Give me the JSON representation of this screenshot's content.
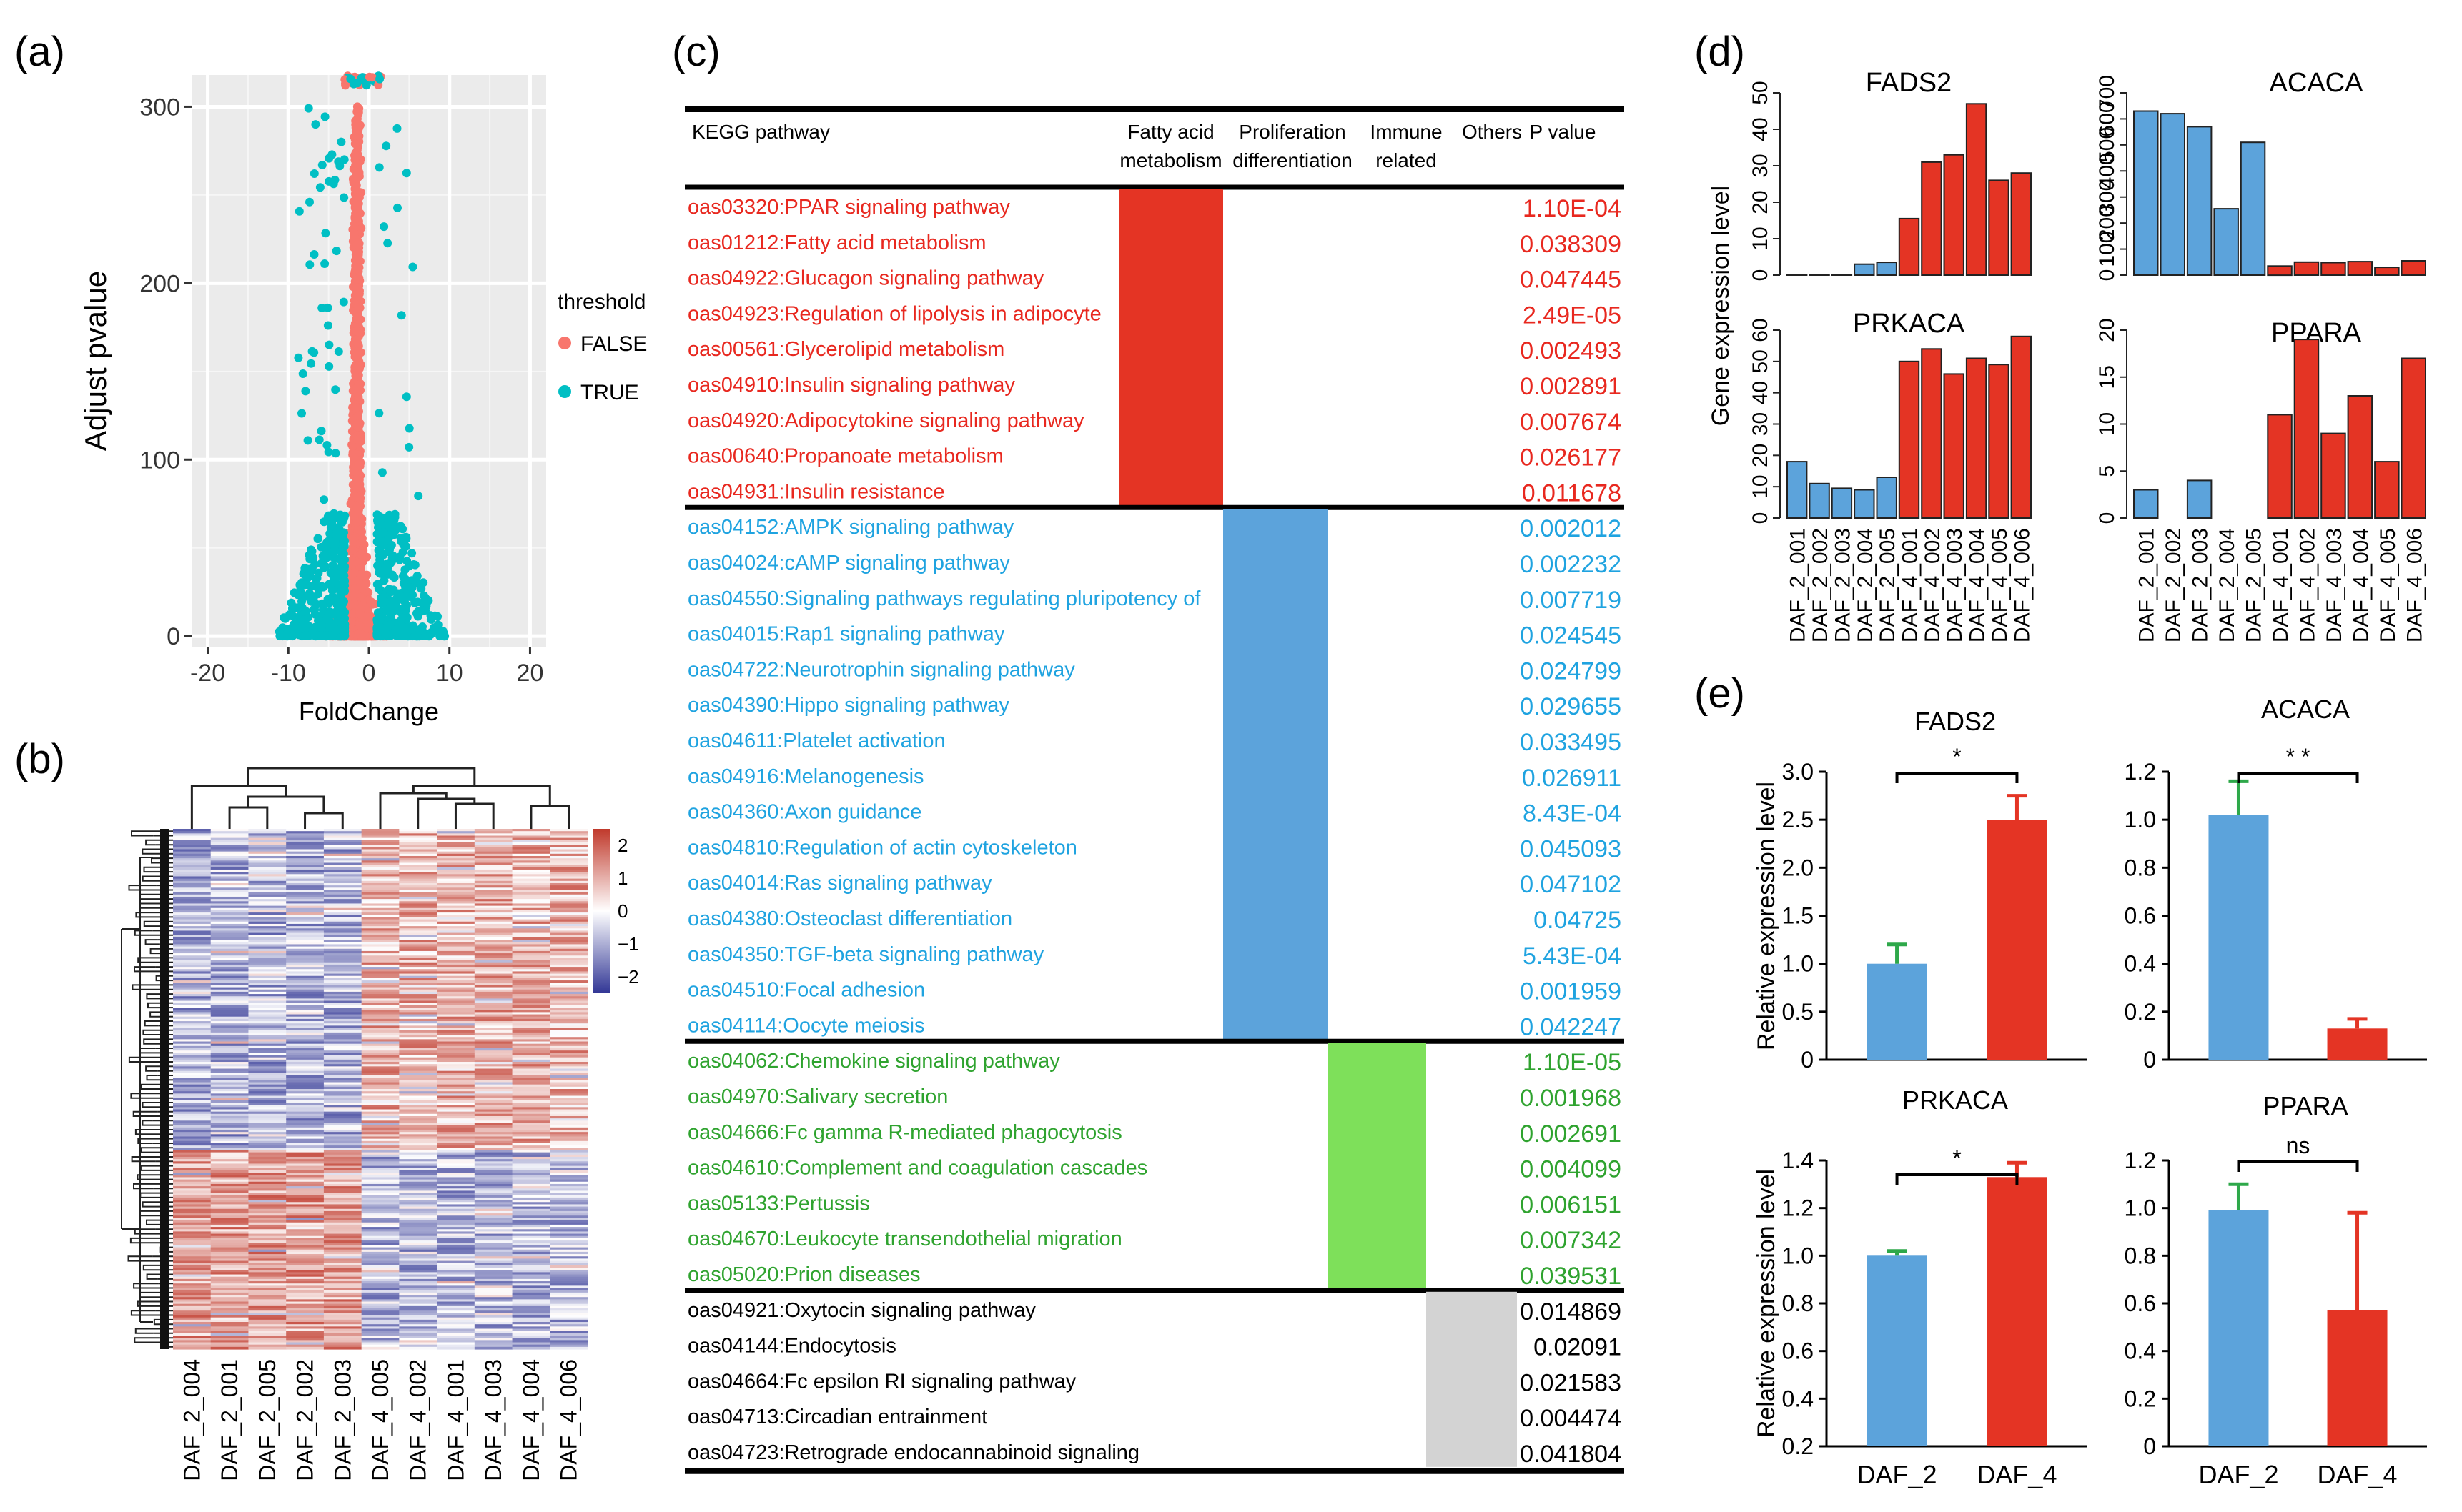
{
  "panel_labels": {
    "a": "(a)",
    "b": "(b)",
    "c": "(c)",
    "d": "(d)",
    "e": "(e)"
  },
  "chart_data": [
    {
      "id": "a",
      "type": "scatter",
      "title": "",
      "xlabel": "FoldChange",
      "ylabel": "Adjust pvalue",
      "xlim": [
        -22,
        22
      ],
      "ylim": [
        -6,
        318
      ],
      "xticks": [
        -20,
        -10,
        0,
        10,
        20
      ],
      "yticks": [
        0,
        100,
        200,
        300
      ],
      "legend": {
        "title": "threshold",
        "position": "right",
        "entries": [
          {
            "label": "FALSE",
            "color": "#F8766D"
          },
          {
            "label": "TRUE",
            "color": "#00BFC4"
          }
        ]
      }
    },
    {
      "id": "b",
      "type": "heatmap",
      "columns": [
        "DAF_2_004",
        "DAF_2_001",
        "DAF_2_005",
        "DAF_2_002",
        "DAF_2_003",
        "DAF_4_005",
        "DAF_4_002",
        "DAF_4_001",
        "DAF_4_003",
        "DAF_4_004",
        "DAF_4_006"
      ],
      "color_scale": {
        "min": -2,
        "max": 2,
        "ticks": [
          "2",
          "1",
          "0",
          "−1",
          "−2"
        ],
        "low": "#313695",
        "mid": "#ffffff",
        "high": "#c0392b"
      }
    },
    {
      "id": "c",
      "type": "table",
      "headers": {
        "pathway": "KEGG pathway",
        "c1a": "Fatty acid",
        "c1b": "metabolism",
        "c2a": "Proliferation",
        "c2b": "differentiation",
        "c3a": "Immune",
        "c3b": "related",
        "c4": "Others",
        "p": "P value"
      },
      "groups": [
        {
          "name": "Fatty acid metabolism",
          "color": "#e8281f",
          "bar": "#e43424",
          "rows": [
            {
              "pathway": "oas03320:PPAR signaling pathway",
              "p": "1.10E-04"
            },
            {
              "pathway": "oas01212:Fatty acid metabolism",
              "p": "0.038309"
            },
            {
              "pathway": "oas04922:Glucagon signaling pathway",
              "p": "0.047445"
            },
            {
              "pathway": "oas04923:Regulation of lipolysis in adipocyte",
              "p": "2.49E-05"
            },
            {
              "pathway": "oas00561:Glycerolipid metabolism",
              "p": "0.002493"
            },
            {
              "pathway": "oas04910:Insulin signaling pathway",
              "p": "0.002891"
            },
            {
              "pathway": "oas04920:Adipocytokine signaling pathway",
              "p": "0.007674"
            },
            {
              "pathway": "oas00640:Propanoate metabolism",
              "p": "0.026177"
            },
            {
              "pathway": "oas04931:Insulin resistance",
              "p": "0.011678"
            }
          ]
        },
        {
          "name": "Proliferation differentiation",
          "color": "#1fa3e0",
          "bar": "#5ca3db",
          "rows": [
            {
              "pathway": "oas04152:AMPK signaling pathway",
              "p": "0.002012"
            },
            {
              "pathway": "oas04024:cAMP signaling pathway",
              "p": "0.002232"
            },
            {
              "pathway": "oas04550:Signaling pathways regulating pluripotency of",
              "p": "0.007719"
            },
            {
              "pathway": "oas04015:Rap1 signaling pathway",
              "p": "0.024545"
            },
            {
              "pathway": "oas04722:Neurotrophin signaling pathway",
              "p": "0.024799"
            },
            {
              "pathway": "oas04390:Hippo signaling pathway",
              "p": "0.029655"
            },
            {
              "pathway": "oas04611:Platelet activation",
              "p": "0.033495"
            },
            {
              "pathway": "oas04916:Melanogenesis",
              "p": "0.026911"
            },
            {
              "pathway": "oas04360:Axon guidance",
              "p": "8.43E-04"
            },
            {
              "pathway": "oas04810:Regulation of actin cytoskeleton",
              "p": "0.045093"
            },
            {
              "pathway": "oas04014:Ras signaling pathway",
              "p": "0.047102"
            },
            {
              "pathway": "oas04380:Osteoclast differentiation",
              "p": "0.04725"
            },
            {
              "pathway": "oas04350:TGF-beta signaling pathway",
              "p": "5.43E-04"
            },
            {
              "pathway": "oas04510:Focal adhesion",
              "p": "0.001959"
            },
            {
              "pathway": "oas04114:Oocyte meiosis",
              "p": "0.042247"
            }
          ]
        },
        {
          "name": "Immune related",
          "color": "#2fa32f",
          "bar": "#7ee05a",
          "rows": [
            {
              "pathway": "oas04062:Chemokine signaling pathway",
              "p": "1.10E-05"
            },
            {
              "pathway": "oas04970:Salivary secretion",
              "p": "0.001968"
            },
            {
              "pathway": "oas04666:Fc gamma R-mediated phagocytosis",
              "p": "0.002691"
            },
            {
              "pathway": "oas04610:Complement and coagulation cascades",
              "p": "0.004099"
            },
            {
              "pathway": "oas05133:Pertussis",
              "p": "0.006151"
            },
            {
              "pathway": "oas04670:Leukocyte transendothelial migration",
              "p": "0.007342"
            },
            {
              "pathway": "oas05020:Prion diseases",
              "p": "0.039531"
            }
          ]
        },
        {
          "name": "Others",
          "color": "#000000",
          "bar": "#d3d3d3",
          "rows": [
            {
              "pathway": "oas04921:Oxytocin signaling pathway",
              "p": "0.014869"
            },
            {
              "pathway": "oas04144:Endocytosis",
              "p": "0.02091"
            },
            {
              "pathway": "oas04664:Fc epsilon RI signaling pathway",
              "p": "0.021583"
            },
            {
              "pathway": "oas04713:Circadian entrainment",
              "p": "0.004474"
            },
            {
              "pathway": "oas04723:Retrograde endocannabinoid signaling",
              "p": "0.041804"
            }
          ]
        }
      ]
    },
    {
      "id": "d",
      "type": "bar",
      "ylabel": "Gene expression level",
      "categories": [
        "DAF_2_001",
        "DAF_2_002",
        "DAF_2_003",
        "DAF_2_004",
        "DAF_2_005",
        "DAF_4_001",
        "DAF_4_002",
        "DAF_4_003",
        "DAF_4_004",
        "DAF_4_005",
        "DAF_4_006"
      ],
      "colors": {
        "DAF_2": "#5ca3db",
        "DAF_4": "#e43424"
      },
      "subplots": [
        {
          "title": "FADS2",
          "ylim": [
            0,
            50
          ],
          "yticks": [
            0,
            10,
            20,
            30,
            40,
            50
          ],
          "values": [
            0.2,
            0.2,
            0.2,
            3,
            3.5,
            15.5,
            31,
            33,
            47,
            26,
            28
          ]
        },
        {
          "title": "ACACA",
          "ylim": [
            0,
            700
          ],
          "yticks": [
            0,
            100,
            200,
            300,
            400,
            500,
            600,
            700
          ],
          "values": [
            630,
            620,
            570,
            255,
            510,
            35,
            50,
            48,
            52,
            30,
            55
          ]
        },
        {
          "title": "PRKACA",
          "ylim": [
            0,
            60
          ],
          "yticks": [
            0,
            10,
            20,
            30,
            40,
            50,
            60
          ],
          "values": [
            18,
            11,
            9.5,
            9,
            13,
            50,
            54,
            46,
            51,
            49,
            58
          ]
        },
        {
          "title": "PPARA",
          "ylim": [
            0,
            20
          ],
          "yticks": [
            0,
            5,
            10,
            15,
            20
          ],
          "values": [
            3,
            0,
            4,
            0,
            0,
            11,
            19,
            9,
            13,
            6,
            17
          ]
        }
      ]
    },
    {
      "id": "e",
      "type": "bar",
      "ylabel": "Relative expression level",
      "categories": [
        "DAF_2",
        "DAF_4"
      ],
      "colors": [
        "#5ca3db",
        "#e43424"
      ],
      "error_color": [
        "#2ea84a",
        "#e43424"
      ],
      "subplots": [
        {
          "title": "FADS2",
          "values": [
            1.0,
            2.5
          ],
          "errors": [
            0.2,
            0.25
          ],
          "ylim": [
            0,
            3.0
          ],
          "yticks": [
            "0",
            "0.5",
            "1.0",
            "1.5",
            "2.0",
            "2.5",
            "3.0"
          ],
          "sig": "*"
        },
        {
          "title": "ACACA",
          "values": [
            1.02,
            0.13
          ],
          "errors": [
            0.14,
            0.04
          ],
          "ylim": [
            0,
            1.2
          ],
          "yticks": [
            "0",
            "0.2",
            "0.4",
            "0.6",
            "0.8",
            "1.0",
            "1.2"
          ],
          "sig": "* *"
        },
        {
          "title": "PRKACA",
          "values": [
            1.0,
            1.33
          ],
          "errors": [
            0.02,
            0.06
          ],
          "ylim": [
            0.2,
            1.4
          ],
          "yticks": [
            "0.2",
            "0.4",
            "0.6",
            "0.8",
            "1.0",
            "1.2",
            "1.4"
          ],
          "sig": "*"
        },
        {
          "title": "PPARA",
          "values": [
            0.99,
            0.57
          ],
          "errors": [
            0.11,
            0.41
          ],
          "ylim": [
            0,
            1.2
          ],
          "yticks": [
            "0",
            "0.2",
            "0.4",
            "0.6",
            "0.8",
            "1.0",
            "1.2"
          ],
          "sig": "ns"
        }
      ]
    }
  ]
}
